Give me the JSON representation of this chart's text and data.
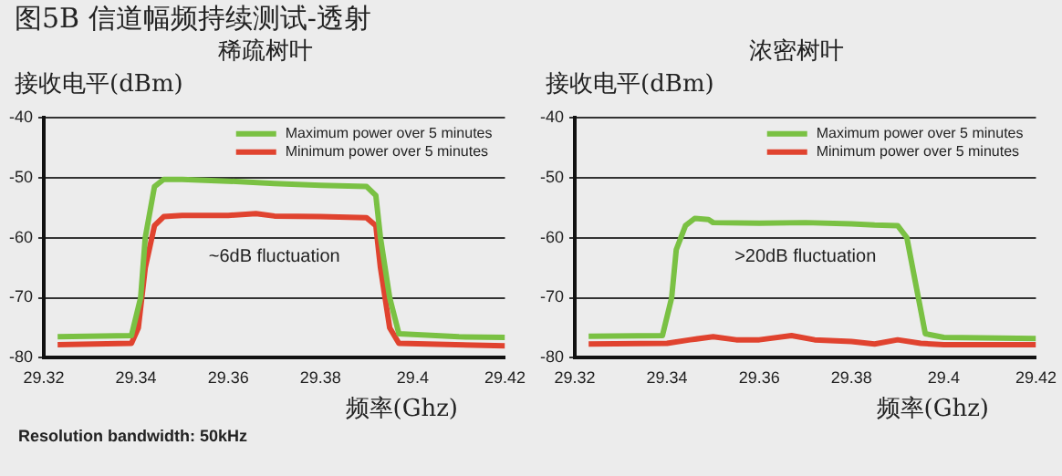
{
  "chart_data": [
    {
      "type": "line",
      "title": "图5B 信道幅频持续测试-透射",
      "subtitle": "稀疏树叶",
      "ylabel": "接收电平(dBm)",
      "xlabel": "频率(Ghz)",
      "xlim": [
        29.32,
        29.42
      ],
      "xticks": [
        29.32,
        29.34,
        29.36,
        29.38,
        29.4,
        29.42
      ],
      "ylim": [
        -80,
        -40
      ],
      "yticks": [
        -80,
        -70,
        -60,
        -50,
        -40
      ],
      "grid": "y",
      "legend": "top right",
      "annotations": [
        "~6dB fluctuation",
        "Resolution bandwidth: 50kHz"
      ],
      "series": [
        {
          "name": "Maximum power over 5 minutes",
          "color": "#7ac143",
          "x": [
            29.323,
            29.339,
            29.341,
            29.342,
            29.344,
            29.346,
            29.35,
            29.36,
            29.37,
            29.38,
            29.39,
            29.392,
            29.393,
            29.395,
            29.397,
            29.41,
            29.42
          ],
          "values": [
            -76.5,
            -76.3,
            -70,
            -60,
            -51.5,
            -50.3,
            -50.3,
            -50.6,
            -51,
            -51.3,
            -51.5,
            -53,
            -60,
            -70,
            -76,
            -76.5,
            -76.6
          ]
        },
        {
          "name": "Minimum power over 5 minutes",
          "color": "#e0432f",
          "x": [
            29.323,
            29.339,
            29.3405,
            29.342,
            29.344,
            29.346,
            29.35,
            29.36,
            29.366,
            29.37,
            29.38,
            29.39,
            29.392,
            29.393,
            29.395,
            29.397,
            29.42
          ],
          "values": [
            -77.8,
            -77.6,
            -75,
            -65,
            -58,
            -56.5,
            -56.3,
            -56.3,
            -56,
            -56.4,
            -56.5,
            -56.7,
            -58,
            -65,
            -75,
            -77.6,
            -78
          ]
        }
      ]
    },
    {
      "type": "line",
      "subtitle": "浓密树叶",
      "ylabel": "接收电平(dBm)",
      "xlabel": "频率(Ghz)",
      "xlim": [
        29.32,
        29.42
      ],
      "xticks": [
        29.32,
        29.34,
        29.36,
        29.38,
        29.4,
        29.42
      ],
      "ylim": [
        -80,
        -40
      ],
      "yticks": [
        -80,
        -70,
        -60,
        -50,
        -40
      ],
      "grid": "y",
      "legend": "top right",
      "annotations": [
        ">20dB fluctuation"
      ],
      "series": [
        {
          "name": "Maximum power over 5 minutes",
          "color": "#7ac143",
          "x": [
            29.323,
            29.339,
            29.341,
            29.342,
            29.344,
            29.346,
            29.349,
            29.35,
            29.36,
            29.37,
            29.38,
            29.385,
            29.39,
            29.392,
            29.394,
            29.396,
            29.4,
            29.42
          ],
          "values": [
            -76.4,
            -76.3,
            -70,
            -62,
            -58,
            -56.8,
            -57,
            -57.5,
            -57.6,
            -57.5,
            -57.7,
            -57.9,
            -58,
            -60,
            -68,
            -76,
            -76.6,
            -76.8
          ]
        },
        {
          "name": "Minimum power over 5 minutes",
          "color": "#e0432f",
          "x": [
            29.323,
            29.34,
            29.345,
            29.35,
            29.355,
            29.36,
            29.367,
            29.372,
            29.38,
            29.385,
            29.39,
            29.395,
            29.4,
            29.42
          ],
          "values": [
            -77.7,
            -77.6,
            -77,
            -76.5,
            -77,
            -77,
            -76.3,
            -77,
            -77.3,
            -77.7,
            -77,
            -77.6,
            -77.8,
            -77.8
          ]
        }
      ]
    }
  ]
}
